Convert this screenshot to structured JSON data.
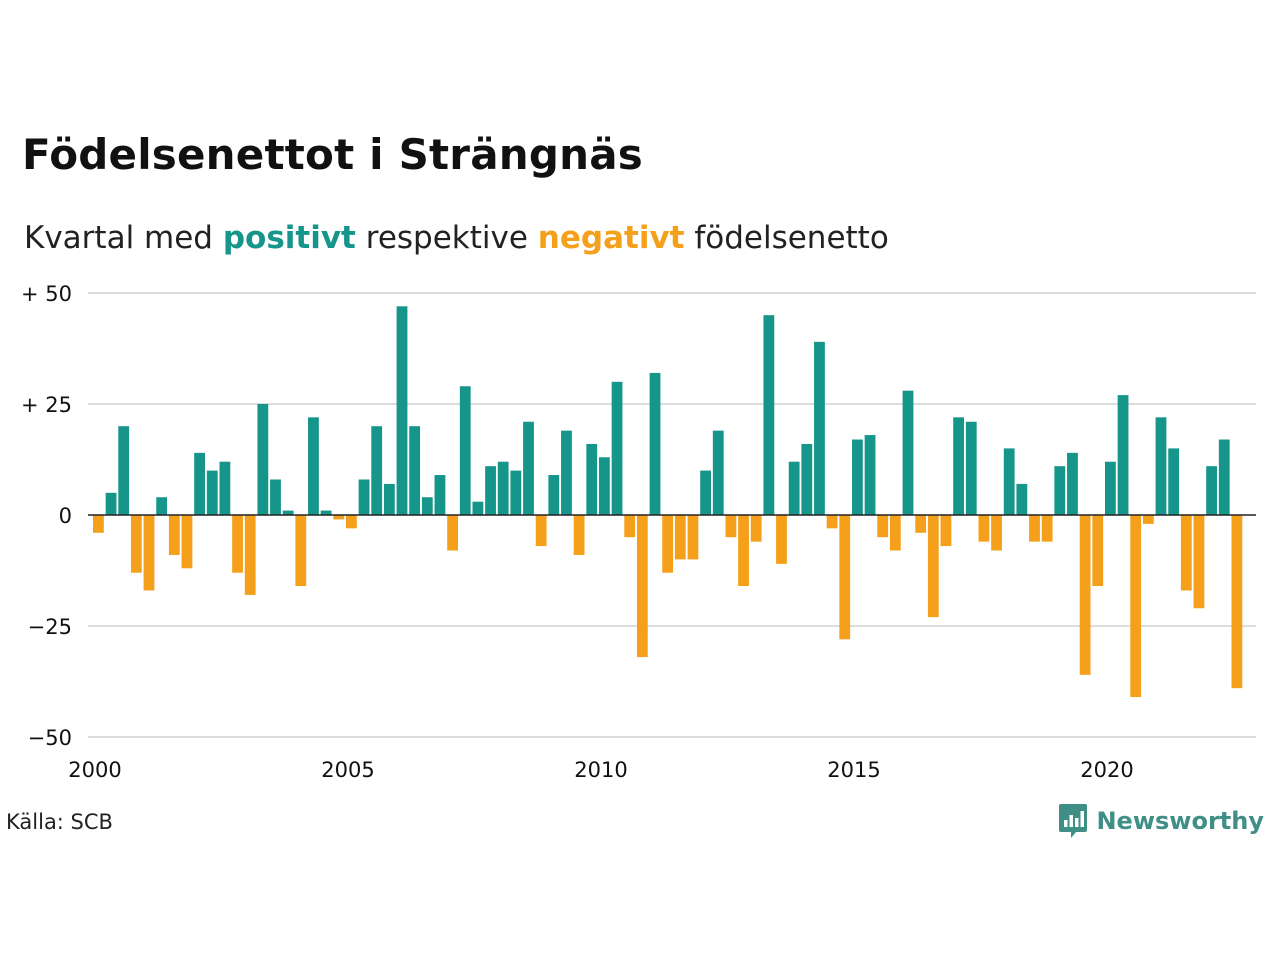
{
  "title": "Födelsenettot i Strängnäs",
  "subtitle": {
    "prefix": "Kvartal med",
    "positive_word": "positivt",
    "middle": "respektive",
    "negative_word": "negativt",
    "suffix": "födelsenetto"
  },
  "source": "Källa: SCB",
  "logo": {
    "text": "Newsworthy",
    "icon": "newsworthy-chart-icon"
  },
  "colors": {
    "positive": "#16958a",
    "negative": "#f5a01a",
    "grid": "#dddddd",
    "text": "#111111",
    "logo": "#3f8f86"
  },
  "chart_data": {
    "type": "bar",
    "ylim": [
      -50,
      50
    ],
    "y_ticks": [
      {
        "value": 50,
        "label": "+ 50"
      },
      {
        "value": 25,
        "label": "+ 25"
      },
      {
        "value": 0,
        "label": "0"
      },
      {
        "value": -25,
        "label": "−25"
      },
      {
        "value": -50,
        "label": "−50"
      }
    ],
    "x_ticks": [
      {
        "year": 2000,
        "label": "2000"
      },
      {
        "year": 2005,
        "label": "2005"
      },
      {
        "year": 2010,
        "label": "2010"
      },
      {
        "year": 2015,
        "label": "2015"
      },
      {
        "year": 2020,
        "label": "2020"
      }
    ],
    "start": "2000Q1",
    "values": [
      -4,
      5,
      20,
      -13,
      -17,
      4,
      -9,
      -12,
      14,
      10,
      12,
      -13,
      -18,
      25,
      8,
      1,
      -16,
      22,
      1,
      -1,
      -3,
      8,
      20,
      7,
      47,
      20,
      4,
      9,
      -8,
      29,
      3,
      11,
      12,
      10,
      21,
      -7,
      9,
      19,
      -9,
      16,
      13,
      30,
      -5,
      -32,
      32,
      -13,
      -10,
      -10,
      10,
      19,
      -5,
      -16,
      -6,
      45,
      -11,
      12,
      16,
      39,
      -3,
      -28,
      17,
      18,
      -5,
      -8,
      28,
      -4,
      -23,
      -7,
      22,
      21,
      -6,
      -8,
      15,
      7,
      -6,
      -6,
      11,
      14,
      -36,
      -16,
      12,
      27,
      -41,
      -2,
      22,
      15,
      -17,
      -21,
      11,
      17,
      -39
    ]
  }
}
